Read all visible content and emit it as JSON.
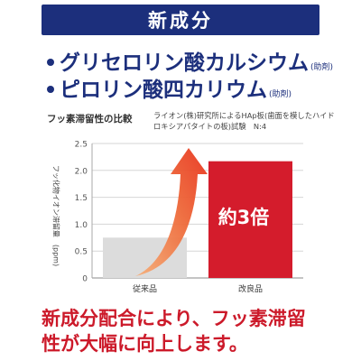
{
  "banner": {
    "title": "新成分"
  },
  "ingredients": [
    {
      "name": "グリセロリン酸カルシウム",
      "note": "(助剤)"
    },
    {
      "name": "ピロリン酸四カリウム",
      "note": "(助剤)"
    }
  ],
  "chart_data": {
    "type": "bar",
    "title": "フッ素滞留性の比較",
    "caption": "ライオン(株)研究所によるHAp板(歯面を模したハイドロキシアパタイトの板)試験　N:4",
    "ylabel": "フッ化物イオン滞留量　(ppm)",
    "ylim": [
      0,
      2.5
    ],
    "yticks": [
      "0",
      "0.5",
      "1.0",
      "1.5",
      "2.0",
      "2.5"
    ],
    "categories": [
      "従来品",
      "改良品"
    ],
    "values": [
      0.75,
      2.17
    ],
    "bar_colors": [
      "#dcdcdc",
      "#d41c2c"
    ],
    "annotation": "約3倍",
    "arrow_color": "#e8452a"
  },
  "bottom": {
    "line1": "新成分配合により、フッ素滞留",
    "line2": "性が大幅に向上します。"
  }
}
